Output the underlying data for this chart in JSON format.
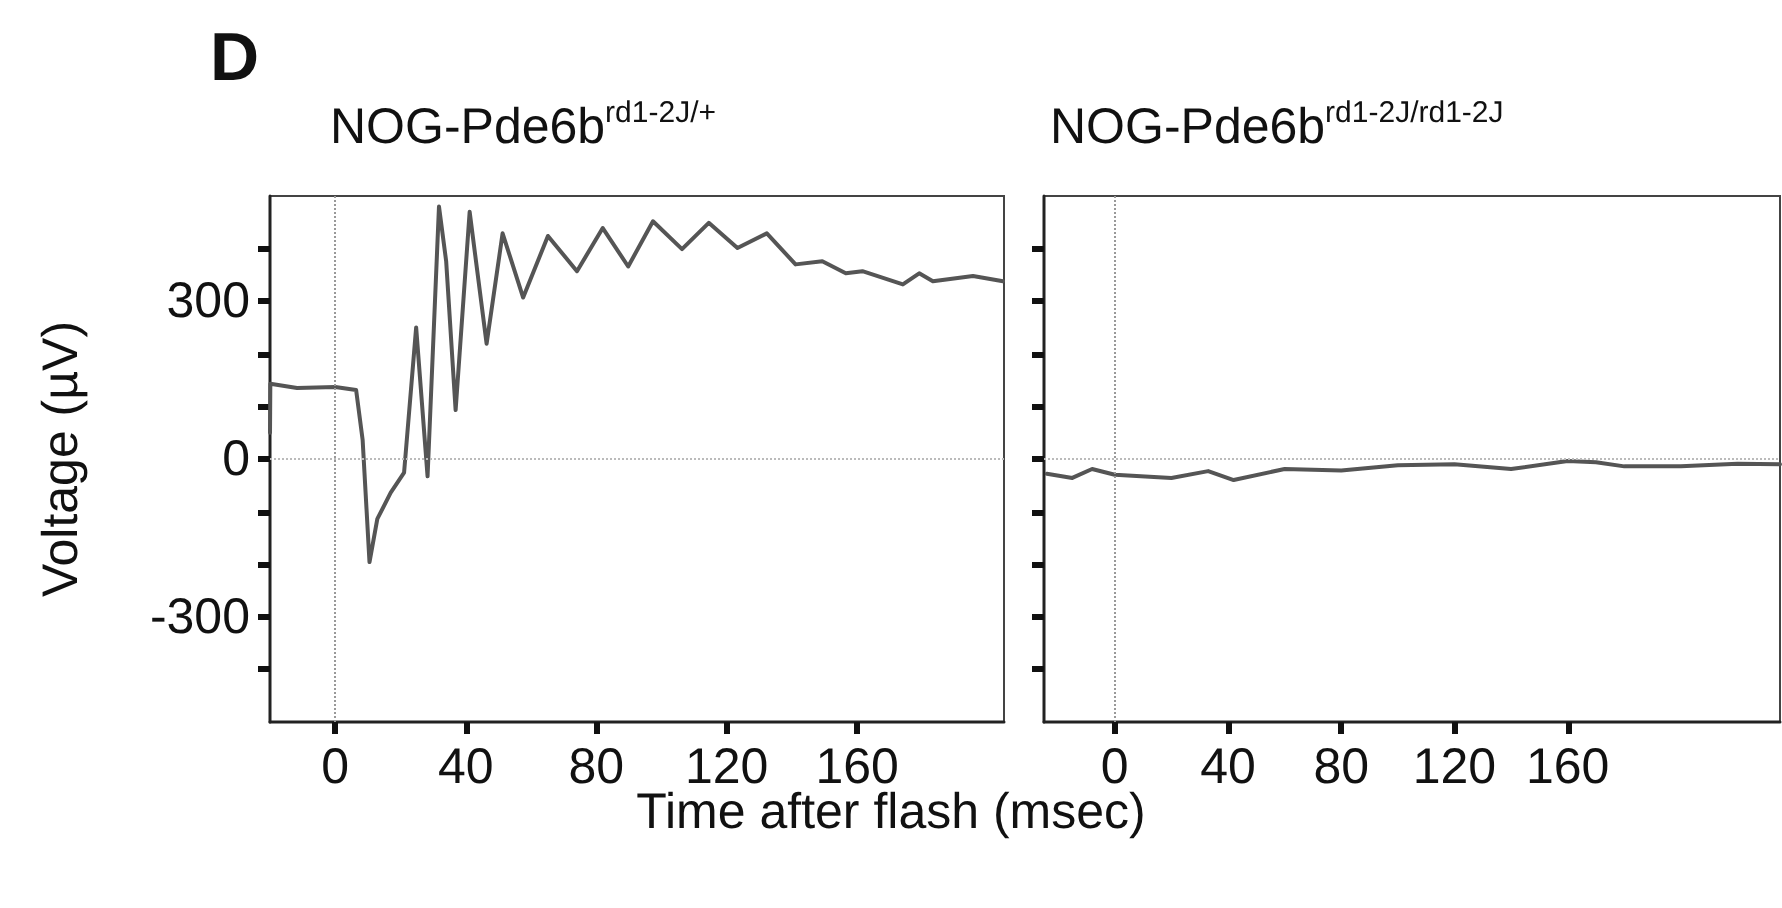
{
  "chart_data": [
    {
      "type": "line",
      "title": "NOG-Pde6b$^{rd1-2J/+}$",
      "xlabel": "Time after flash (msec)",
      "ylabel": "Voltage (µV)",
      "annotations": [
        "D"
      ],
      "series": [
        {
          "color": "#555555",
          "x": [
            -20,
            -19.9,
            -11.7,
            0,
            6.4,
            8.4,
            10.5,
            12.9,
            17,
            21.1,
            24.8,
            28.3,
            31.8,
            34,
            36.9,
            41.2,
            46.4,
            51.3,
            57.6,
            65.2,
            74.1,
            82,
            89.8,
            97.4,
            106.3,
            114.5,
            123.3,
            132.3,
            141.1,
            149.3,
            156.5,
            161.6,
            174,
            179,
            183.2,
            195.5,
            204.7
          ],
          "values": [
            50,
            143,
            135,
            137,
            131,
            36,
            -196,
            -114,
            -64,
            -26,
            250,
            -33,
            480,
            376,
            93,
            470,
            219,
            429,
            307,
            424,
            357,
            439,
            366,
            452,
            399,
            449,
            401,
            429,
            370,
            376,
            353,
            357,
            332,
            353,
            338,
            348,
            338
          ]
        }
      ],
      "xlim": [
        -20,
        205
      ],
      "xticks": [
        0,
        40,
        80,
        120,
        160
      ],
      "ylim": [
        -500,
        500
      ],
      "yticks": [
        {
          "value": -400,
          "label": null
        },
        {
          "value": -300,
          "label": "-300"
        },
        {
          "value": -200,
          "label": null
        },
        {
          "value": -100,
          "label": null
        },
        {
          "value": 0,
          "label": "0"
        },
        {
          "value": 100,
          "label": null
        },
        {
          "value": 200,
          "label": null
        },
        {
          "value": 300,
          "label": "300"
        },
        {
          "value": 400,
          "label": null
        }
      ],
      "ref_lines": [
        {
          "axis": "x",
          "value": 0,
          "color": "#999999",
          "line_style": "dotted"
        },
        {
          "axis": "y",
          "value": 0,
          "color": "#bbbbbb",
          "line_style": "dotted"
        }
      ],
      "grid": false,
      "marker": "none",
      "line_style": "solid"
    },
    {
      "type": "line",
      "title": "NOG-Pde6b$^{rd1-2J/rd1-2J}$",
      "series": [
        {
          "color": "#555555",
          "x": [
            -24,
            -15,
            -8,
            0,
            20,
            33,
            42,
            60,
            80,
            100,
            120,
            140,
            160,
            170,
            180,
            200,
            220,
            235
          ],
          "values": [
            -28,
            -36,
            -19,
            -30,
            -36,
            -23,
            -40,
            -19,
            -22,
            -12,
            -10,
            -19,
            -4,
            -6,
            -14,
            -14,
            -9,
            -10
          ]
        }
      ],
      "xlim": [
        -25,
        235
      ],
      "xticks": [
        0,
        40,
        80,
        120,
        160
      ],
      "ylim": [
        -500,
        500
      ],
      "yticks": [
        {
          "value": -400,
          "label": null
        },
        {
          "value": -300,
          "label": null
        },
        {
          "value": -200,
          "label": null
        },
        {
          "value": -100,
          "label": null
        },
        {
          "value": 0,
          "label": null
        },
        {
          "value": 100,
          "label": null
        },
        {
          "value": 200,
          "label": null
        },
        {
          "value": 300,
          "label": null
        },
        {
          "value": 400,
          "label": null
        }
      ],
      "tick_labels": "x",
      "ref_lines": [
        {
          "axis": "x",
          "value": 0,
          "color": "#999999",
          "line_style": "dotted"
        },
        {
          "axis": "y",
          "value": 0,
          "color": "#bbbbbb",
          "line_style": "dotted"
        }
      ],
      "grid": false,
      "marker": "none",
      "line_style": "solid"
    }
  ]
}
